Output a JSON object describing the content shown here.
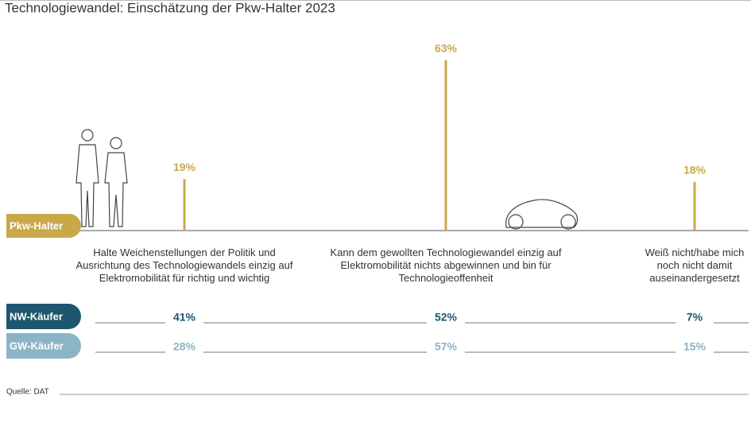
{
  "chart_data": {
    "type": "lollipop",
    "title": "Technologiewandel: Einschätzung der Pkw-Halter 2023",
    "categories": [
      "Halte Weichenstellungen der Politik und Ausrichtung des Technologiewandels einzig auf Elektromobilität für richtig und wichtig",
      "Kann dem gewollten Technologiewandel einzig auf Elektromobilität nichts abgewinnen und bin für Technologieoffenheit",
      "Weiß nicht/habe mich noch nicht damit auseinandergesetzt"
    ],
    "series": [
      {
        "name": "Pkw-Halter",
        "color": "#c8a94a",
        "values": [
          19,
          63,
          18
        ],
        "value_labels": [
          "19%",
          "63%",
          "18%"
        ]
      },
      {
        "name": "NW-Käufer",
        "color": "#1e5670",
        "values": [
          41,
          52,
          7
        ],
        "value_labels": [
          "41%",
          "52%",
          "7%"
        ]
      },
      {
        "name": "GW-Käufer",
        "color": "#8bb5c6",
        "values": [
          28,
          57,
          15
        ],
        "value_labels": [
          "28%",
          "57%",
          "15%"
        ]
      }
    ],
    "source": "Quelle: DAT"
  }
}
